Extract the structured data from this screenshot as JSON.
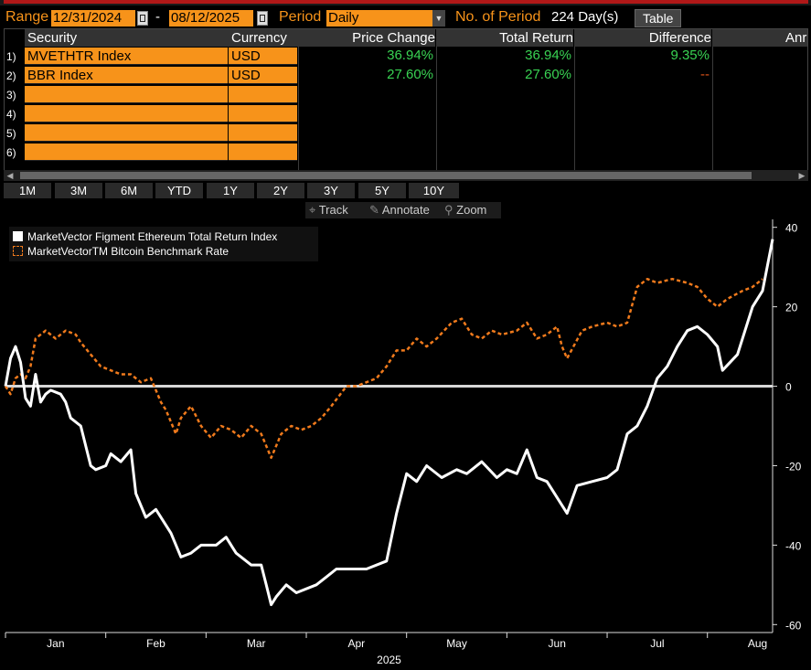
{
  "controls": {
    "range_label": "Range",
    "start_date": "12/31/2024",
    "dash": "-",
    "end_date": "08/12/2025",
    "period_label": "Period",
    "period_value": "Daily",
    "periods_label": "No. of Period",
    "periods_value": "224 Day(s)",
    "table_button": "Table"
  },
  "grid": {
    "headers": [
      "Security",
      "Currency",
      "Price Change",
      "Total Return",
      "Difference",
      "Anr"
    ],
    "rows": [
      {
        "num": "1)",
        "security": "MVETHTR Index",
        "currency": "USD",
        "price_change": "36.94%",
        "total_return": "36.94%",
        "difference": "9.35%"
      },
      {
        "num": "2)",
        "security": "BBR Index",
        "currency": "USD",
        "price_change": "27.60%",
        "total_return": "27.60%",
        "difference": "--"
      },
      {
        "num": "3)",
        "security": "",
        "currency": ""
      },
      {
        "num": "4)",
        "security": "",
        "currency": ""
      },
      {
        "num": "5)",
        "security": "",
        "currency": ""
      },
      {
        "num": "6)",
        "security": "",
        "currency": ""
      }
    ]
  },
  "period_buttons": [
    "1M",
    "3M",
    "6M",
    "YTD",
    "1Y",
    "2Y",
    "3Y",
    "5Y",
    "10Y"
  ],
  "tools": [
    {
      "label": "Track",
      "icon": "crosshair-icon"
    },
    {
      "label": "Annotate",
      "icon": "pencil-icon"
    },
    {
      "label": "Zoom",
      "icon": "magnifier-icon"
    }
  ],
  "colors": {
    "accent": "#f7931a",
    "positive": "#39d353",
    "eth_line": "#ffffff",
    "btc_line": "#f07a1c"
  },
  "chart_data": {
    "type": "line",
    "xlabel": "2025",
    "x_ticks": [
      "Jan",
      "Feb",
      "Mar",
      "Apr",
      "May",
      "Jun",
      "Jul",
      "Aug"
    ],
    "ylim": [
      -62,
      42
    ],
    "y_ticks": [
      40,
      20,
      0,
      -20,
      -40,
      -60
    ],
    "legend_placement": "top-left",
    "series": [
      {
        "name": "MarketVector Figment Ethereum Total Return Index",
        "style": "solid",
        "points": [
          [
            0,
            0
          ],
          [
            0.05,
            7
          ],
          [
            0.1,
            10
          ],
          [
            0.15,
            6
          ],
          [
            0.2,
            -3
          ],
          [
            0.25,
            -5
          ],
          [
            0.3,
            3
          ],
          [
            0.35,
            -4
          ],
          [
            0.4,
            -2
          ],
          [
            0.45,
            -1
          ],
          [
            0.55,
            -2
          ],
          [
            0.6,
            -4
          ],
          [
            0.65,
            -8
          ],
          [
            0.75,
            -10
          ],
          [
            0.85,
            -20
          ],
          [
            0.9,
            -21
          ],
          [
            1.0,
            -20
          ],
          [
            1.05,
            -17
          ],
          [
            1.15,
            -19
          ],
          [
            1.25,
            -16
          ],
          [
            1.3,
            -27
          ],
          [
            1.4,
            -33
          ],
          [
            1.5,
            -31
          ],
          [
            1.65,
            -37
          ],
          [
            1.75,
            -43
          ],
          [
            1.85,
            -42
          ],
          [
            1.95,
            -40
          ],
          [
            2.1,
            -40
          ],
          [
            2.2,
            -38
          ],
          [
            2.3,
            -42
          ],
          [
            2.45,
            -45
          ],
          [
            2.55,
            -45
          ],
          [
            2.6,
            -50
          ],
          [
            2.65,
            -55
          ],
          [
            2.7,
            -53
          ],
          [
            2.8,
            -50
          ],
          [
            2.9,
            -52
          ],
          [
            3.1,
            -50
          ],
          [
            3.2,
            -48
          ],
          [
            3.3,
            -46
          ],
          [
            3.45,
            -46
          ],
          [
            3.6,
            -46
          ],
          [
            3.8,
            -44
          ],
          [
            3.9,
            -32
          ],
          [
            4.0,
            -22
          ],
          [
            4.1,
            -24
          ],
          [
            4.2,
            -20
          ],
          [
            4.35,
            -23
          ],
          [
            4.5,
            -21
          ],
          [
            4.6,
            -22
          ],
          [
            4.75,
            -19
          ],
          [
            4.9,
            -23
          ],
          [
            5.0,
            -21
          ],
          [
            5.1,
            -22
          ],
          [
            5.2,
            -16
          ],
          [
            5.3,
            -23
          ],
          [
            5.4,
            -24
          ],
          [
            5.5,
            -28
          ],
          [
            5.6,
            -32
          ],
          [
            5.7,
            -25
          ],
          [
            5.85,
            -24
          ],
          [
            6.0,
            -23
          ],
          [
            6.1,
            -21
          ],
          [
            6.2,
            -12
          ],
          [
            6.3,
            -10
          ],
          [
            6.4,
            -5
          ],
          [
            6.5,
            2
          ],
          [
            6.6,
            5
          ],
          [
            6.7,
            10
          ],
          [
            6.8,
            14
          ],
          [
            6.9,
            15
          ],
          [
            7.0,
            13
          ],
          [
            7.1,
            10
          ],
          [
            7.15,
            4
          ],
          [
            7.3,
            8
          ],
          [
            7.45,
            20
          ],
          [
            7.55,
            24
          ],
          [
            7.65,
            37
          ]
        ]
      },
      {
        "name": "MarketVectorTM Bitcoin Benchmark Rate",
        "style": "dashed",
        "points": [
          [
            0,
            0
          ],
          [
            0.05,
            -2
          ],
          [
            0.1,
            2
          ],
          [
            0.15,
            3
          ],
          [
            0.2,
            2
          ],
          [
            0.25,
            5
          ],
          [
            0.3,
            12
          ],
          [
            0.4,
            14
          ],
          [
            0.5,
            12
          ],
          [
            0.6,
            14
          ],
          [
            0.7,
            13
          ],
          [
            0.75,
            11
          ],
          [
            0.85,
            8
          ],
          [
            0.95,
            5
          ],
          [
            1.05,
            4
          ],
          [
            1.15,
            3
          ],
          [
            1.25,
            3
          ],
          [
            1.35,
            1
          ],
          [
            1.45,
            2
          ],
          [
            1.55,
            -4
          ],
          [
            1.6,
            -6
          ],
          [
            1.7,
            -12
          ],
          [
            1.75,
            -8
          ],
          [
            1.85,
            -5
          ],
          [
            1.95,
            -10
          ],
          [
            2.05,
            -13
          ],
          [
            2.15,
            -10
          ],
          [
            2.25,
            -11
          ],
          [
            2.35,
            -13
          ],
          [
            2.45,
            -10
          ],
          [
            2.55,
            -12
          ],
          [
            2.65,
            -18
          ],
          [
            2.75,
            -12
          ],
          [
            2.85,
            -10
          ],
          [
            2.95,
            -11
          ],
          [
            3.05,
            -10
          ],
          [
            3.15,
            -8
          ],
          [
            3.25,
            -5
          ],
          [
            3.4,
            0
          ],
          [
            3.5,
            0
          ],
          [
            3.6,
            1
          ],
          [
            3.7,
            2
          ],
          [
            3.8,
            5
          ],
          [
            3.9,
            9
          ],
          [
            4.0,
            9
          ],
          [
            4.1,
            12
          ],
          [
            4.2,
            10
          ],
          [
            4.3,
            12
          ],
          [
            4.45,
            16
          ],
          [
            4.55,
            17
          ],
          [
            4.65,
            13
          ],
          [
            4.75,
            12
          ],
          [
            4.85,
            14
          ],
          [
            4.95,
            13
          ],
          [
            5.1,
            14
          ],
          [
            5.2,
            16
          ],
          [
            5.3,
            12
          ],
          [
            5.4,
            13
          ],
          [
            5.5,
            15
          ],
          [
            5.55,
            10
          ],
          [
            5.6,
            7
          ],
          [
            5.75,
            14
          ],
          [
            5.85,
            15
          ],
          [
            6.0,
            16
          ],
          [
            6.1,
            15
          ],
          [
            6.2,
            16
          ],
          [
            6.3,
            25
          ],
          [
            6.4,
            27
          ],
          [
            6.5,
            26
          ],
          [
            6.65,
            27
          ],
          [
            6.8,
            26
          ],
          [
            6.9,
            25
          ],
          [
            7.0,
            22
          ],
          [
            7.1,
            20
          ],
          [
            7.2,
            22
          ],
          [
            7.35,
            24
          ],
          [
            7.45,
            25
          ],
          [
            7.55,
            27
          ]
        ]
      }
    ]
  }
}
